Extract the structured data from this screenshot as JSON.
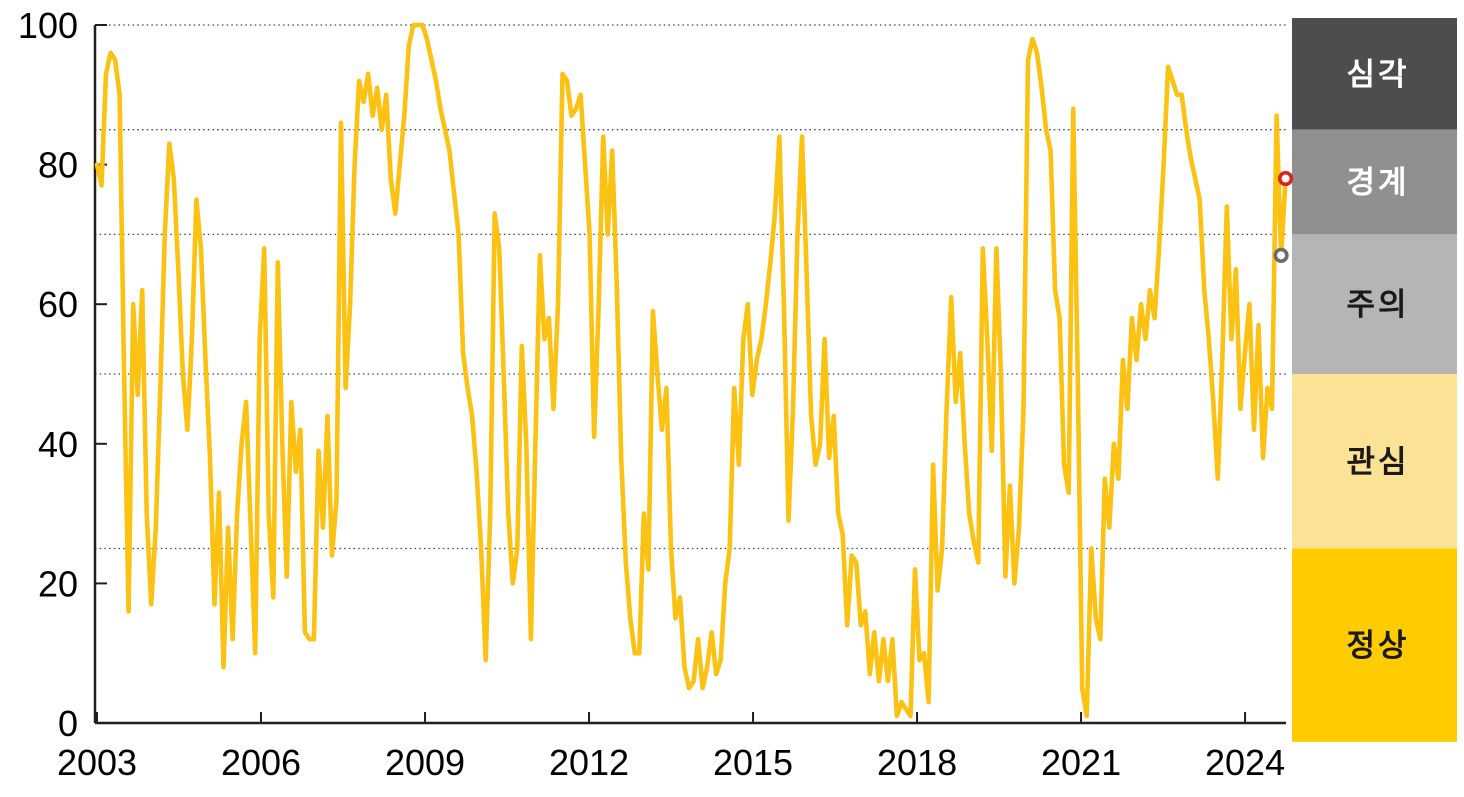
{
  "chart_data": {
    "type": "line",
    "title": "",
    "y_axis": {
      "ticks": [
        0,
        20,
        40,
        60,
        80,
        100
      ],
      "range": [
        0,
        100
      ]
    },
    "x_axis": {
      "tick_years": [
        2003,
        2006,
        2009,
        2012,
        2015,
        2018,
        2021,
        2024
      ]
    },
    "gridline_values": [
      25,
      50,
      70,
      85,
      100
    ],
    "grid_on": true,
    "legend_position": "right-column",
    "series": {
      "name": "risk-index",
      "frequency": "monthly",
      "start": "2003-01",
      "end": "2024-12",
      "values": [
        80,
        77,
        93,
        96,
        95,
        90,
        50,
        16,
        60,
        47,
        62,
        30,
        17,
        28,
        48,
        70,
        83,
        78,
        65,
        50,
        42,
        55,
        75,
        68,
        52,
        38,
        17,
        33,
        8,
        28,
        12,
        30,
        40,
        46,
        28,
        10,
        55,
        68,
        30,
        18,
        66,
        40,
        21,
        46,
        36,
        42,
        13,
        12,
        12,
        39,
        28,
        44,
        24,
        32,
        86,
        48,
        60,
        80,
        92,
        89,
        93,
        87,
        91,
        85,
        90,
        78,
        73,
        80,
        87,
        97,
        100,
        100,
        100,
        98,
        95,
        92,
        88,
        85,
        82,
        76,
        70,
        53,
        48,
        44,
        36,
        25,
        9,
        30,
        73,
        68,
        50,
        30,
        20,
        25,
        54,
        40,
        12,
        40,
        67,
        55,
        58,
        45,
        60,
        93,
        92,
        87,
        88,
        90,
        80,
        70,
        41,
        60,
        84,
        70,
        82,
        63,
        38,
        23,
        15,
        10,
        10,
        30,
        22,
        59,
        50,
        42,
        48,
        25,
        15,
        18,
        8,
        5,
        6,
        12,
        5,
        8,
        13,
        7,
        9,
        20,
        25,
        48,
        37,
        55,
        60,
        47,
        52,
        55,
        60,
        66,
        73,
        84,
        60,
        29,
        45,
        70,
        84,
        65,
        44,
        37,
        40,
        55,
        38,
        44,
        30,
        27,
        14,
        24,
        23,
        14,
        16,
        7,
        13,
        6,
        12,
        6,
        12,
        1,
        3,
        2,
        1,
        22,
        9,
        10,
        3,
        37,
        19,
        25,
        45,
        61,
        46,
        53,
        40,
        30,
        26,
        23,
        68,
        55,
        39,
        68,
        50,
        21,
        34,
        20,
        28,
        45,
        95,
        98,
        96,
        91,
        85,
        82,
        62,
        58,
        37,
        33,
        88,
        50,
        5,
        1,
        25,
        15,
        12,
        35,
        28,
        40,
        35,
        52,
        45,
        58,
        52,
        60,
        55,
        62,
        58,
        68,
        80,
        94,
        92,
        90,
        90,
        85,
        81,
        78,
        75,
        62,
        55,
        46,
        35,
        52,
        74,
        55,
        65,
        45,
        53,
        60,
        42,
        57,
        38,
        48,
        45,
        87,
        67,
        78
      ]
    },
    "markers": [
      {
        "key": "previous-point",
        "index": 262,
        "value": 67,
        "color": "#6c6c6c"
      },
      {
        "key": "latest-point",
        "index": 263,
        "value": 78,
        "color": "#d7241f"
      }
    ],
    "legend_bands": [
      {
        "key": "severe",
        "label": "심각",
        "from": 85,
        "to": 101,
        "color": "#4d4d4d",
        "text_color": "#ffffff"
      },
      {
        "key": "alert",
        "label": "경계",
        "from": 70,
        "to": 85,
        "color": "#909090",
        "text_color": "#ffffff"
      },
      {
        "key": "caution",
        "label": "주의",
        "from": 50,
        "to": 70,
        "color": "#b5b5b5",
        "text_color": "#1a1a1a"
      },
      {
        "key": "watch",
        "label": "관심",
        "from": 25,
        "to": 50,
        "color": "#fce294",
        "text_color": "#1a1a1a"
      },
      {
        "key": "normal",
        "label": "정상",
        "from": -2.7,
        "to": 25,
        "color": "#ffcc00",
        "text_color": "#1a1a1a"
      }
    ],
    "colors": {
      "line": "#fcc213",
      "axis": "#1f1f1f",
      "grid": "#444444",
      "label": "#000000",
      "marker_fill": "#ffffff"
    }
  }
}
